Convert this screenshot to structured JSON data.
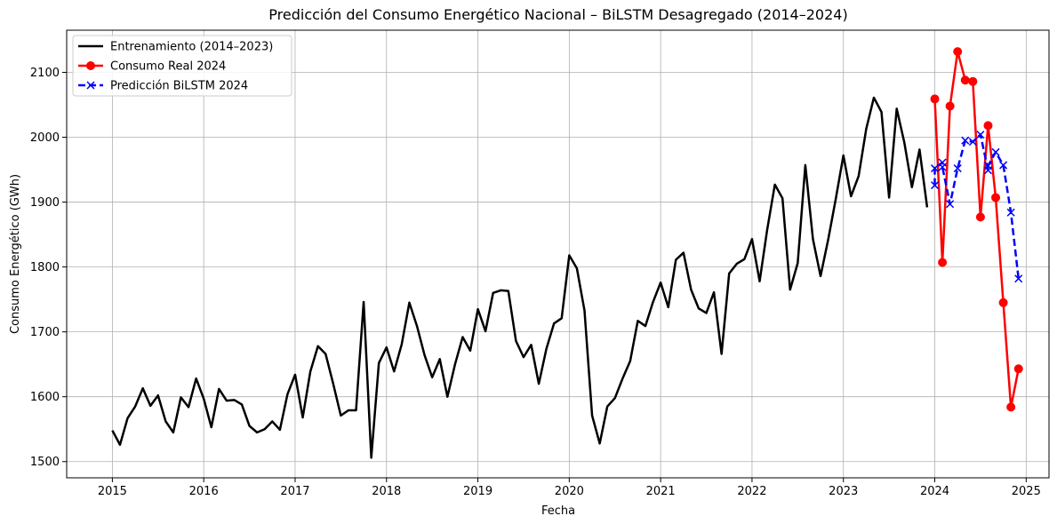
{
  "chart_data": {
    "type": "line",
    "title": "Predicción del Consumo Energético Nacional – BiLSTM Desagregado (2014–2024)",
    "xlabel": "Fecha",
    "ylabel": "Consumo Energético (GWh)",
    "xlim": [
      "2014-07-01",
      "2025-04-01"
    ],
    "ylim": [
      1475,
      2165
    ],
    "x_ticks": [
      "2015",
      "2016",
      "2017",
      "2018",
      "2019",
      "2020",
      "2021",
      "2022",
      "2023",
      "2024",
      "2025"
    ],
    "y_ticks": [
      "1500",
      "1600",
      "1700",
      "1800",
      "1900",
      "2000",
      "2100"
    ],
    "grid": true,
    "legend_position": "top-left",
    "series": [
      {
        "name": "Entrenamiento (2014–2023)",
        "color": "#000000",
        "style": "solid",
        "marker": "none",
        "x": [
          "2015-01",
          "2015-02",
          "2015-03",
          "2015-04",
          "2015-05",
          "2015-06",
          "2015-07",
          "2015-08",
          "2015-09",
          "2015-10",
          "2015-11",
          "2015-12",
          "2016-01",
          "2016-02",
          "2016-03",
          "2016-04",
          "2016-05",
          "2016-06",
          "2016-07",
          "2016-08",
          "2016-09",
          "2016-10",
          "2016-11",
          "2016-12",
          "2017-01",
          "2017-02",
          "2017-03",
          "2017-04",
          "2017-05",
          "2017-06",
          "2017-07",
          "2017-08",
          "2017-09",
          "2017-10",
          "2017-11",
          "2017-12",
          "2018-01",
          "2018-02",
          "2018-03",
          "2018-04",
          "2018-05",
          "2018-06",
          "2018-07",
          "2018-08",
          "2018-09",
          "2018-10",
          "2018-11",
          "2018-12",
          "2019-01",
          "2019-02",
          "2019-03",
          "2019-04",
          "2019-05",
          "2019-06",
          "2019-07",
          "2019-08",
          "2019-09",
          "2019-10",
          "2019-11",
          "2019-12",
          "2020-01",
          "2020-02",
          "2020-03",
          "2020-04",
          "2020-05",
          "2020-06",
          "2020-07",
          "2020-08",
          "2020-09",
          "2020-10",
          "2020-11",
          "2020-12",
          "2021-01",
          "2021-02",
          "2021-03",
          "2021-04",
          "2021-05",
          "2021-06",
          "2021-07",
          "2021-08",
          "2021-09",
          "2021-10",
          "2021-11",
          "2021-12",
          "2022-01",
          "2022-02",
          "2022-03",
          "2022-04",
          "2022-05",
          "2022-06",
          "2022-07",
          "2022-08",
          "2022-09",
          "2022-10",
          "2022-11",
          "2022-12",
          "2023-01",
          "2023-02",
          "2023-03",
          "2023-04",
          "2023-05",
          "2023-06",
          "2023-07",
          "2023-08",
          "2023-09",
          "2023-10",
          "2023-11",
          "2023-12"
        ],
        "values": [
          1548,
          1526,
          1567,
          1585,
          1613,
          1586,
          1602,
          1562,
          1545,
          1599,
          1584,
          1628,
          1597,
          1553,
          1612,
          1594,
          1595,
          1588,
          1555,
          1545,
          1550,
          1562,
          1549,
          1604,
          1634,
          1568,
          1639,
          1678,
          1666,
          1620,
          1571,
          1579,
          1579,
          1746,
          1506,
          1652,
          1676,
          1639,
          1681,
          1745,
          1709,
          1664,
          1630,
          1658,
          1600,
          1650,
          1692,
          1671,
          1735,
          1701,
          1760,
          1764,
          1763,
          1686,
          1661,
          1680,
          1620,
          1674,
          1713,
          1721,
          1818,
          1798,
          1733,
          1571,
          1528,
          1585,
          1598,
          1628,
          1655,
          1717,
          1709,
          1746,
          1776,
          1738,
          1811,
          1822,
          1765,
          1736,
          1729,
          1761,
          1666,
          1790,
          1805,
          1812,
          1843,
          1778,
          1858,
          1927,
          1906,
          1765,
          1806,
          1957,
          1843,
          1786,
          1842,
          1905,
          1972,
          1909,
          1940,
          2013,
          2061,
          2039,
          1907,
          2044,
          1992,
          1923,
          1981,
          1892
        ]
      },
      {
        "name": "Consumo Real 2024",
        "color": "#ff0000",
        "style": "solid",
        "marker": "circle",
        "x": [
          "2024-01",
          "2024-02",
          "2024-03",
          "2024-04",
          "2024-05",
          "2024-06",
          "2024-07",
          "2024-08",
          "2024-09",
          "2024-10",
          "2024-11",
          "2024-12"
        ],
        "values": [
          2059,
          1807,
          2048,
          2132,
          2088,
          2086,
          1877,
          2018,
          1907,
          1745,
          1584,
          1643
        ]
      },
      {
        "name": "Predicción BiLSTM 2024",
        "color": "#0000ff",
        "style": "dashed",
        "marker": "x",
        "x": [
          "2024-01",
          "2024-01",
          "2024-02",
          "2024-02",
          "2024-03",
          "2024-04",
          "2024-05",
          "2024-06",
          "2024-07",
          "2024-08",
          "2024-08",
          "2024-09",
          "2024-10",
          "2024-11",
          "2024-12"
        ],
        "values": [
          1926,
          1952,
          1961,
          1954,
          1897,
          1952,
          1995,
          1993,
          2004,
          1949,
          1956,
          1977,
          1957,
          1884,
          1782
        ]
      }
    ]
  }
}
